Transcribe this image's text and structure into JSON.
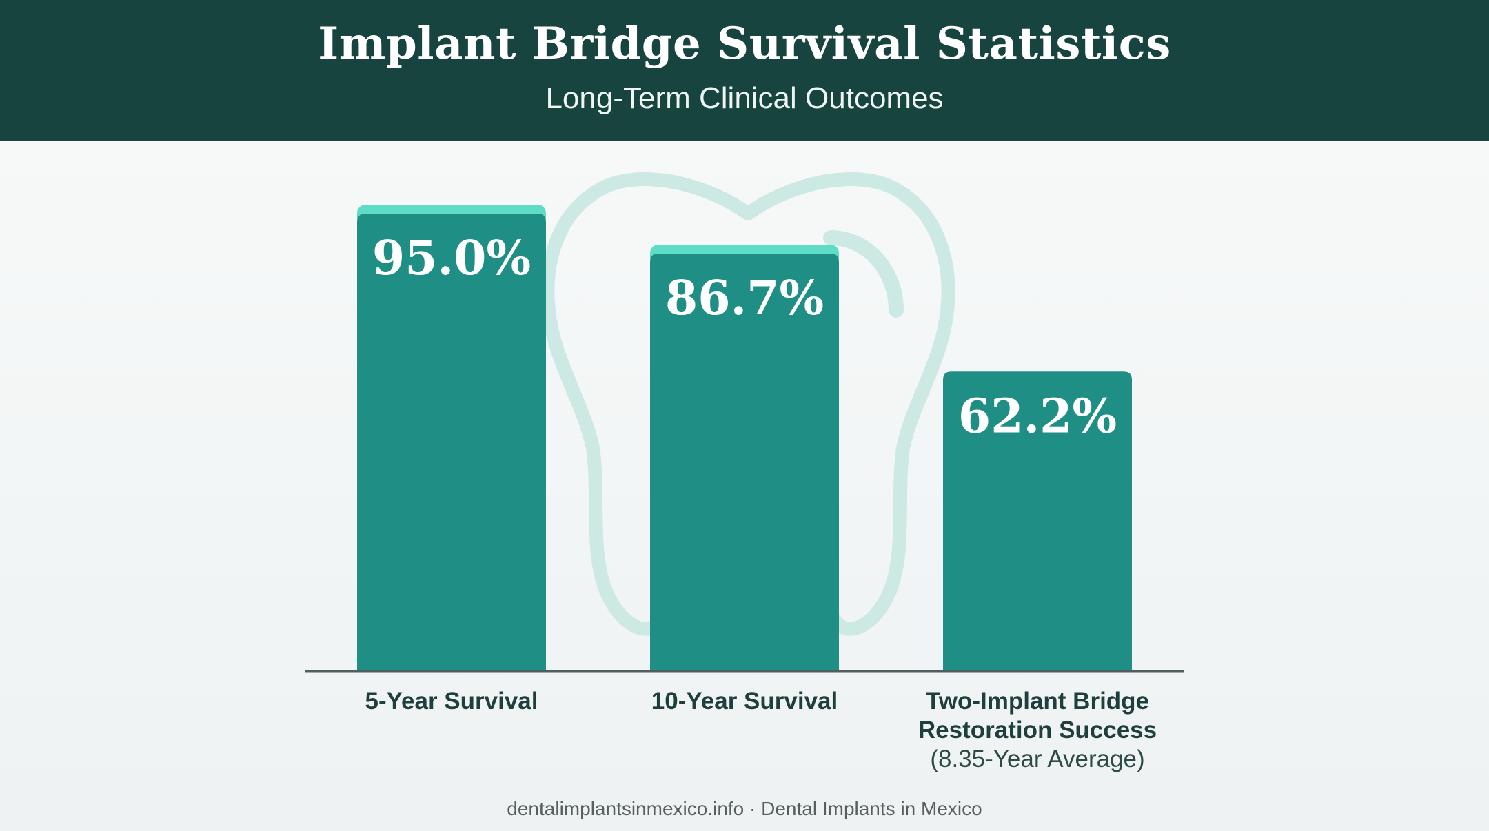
{
  "header": {
    "title": "Implant Bridge Survival Statistics",
    "subtitle": "Long-Term Clinical Outcomes"
  },
  "footer": {
    "text": "dentalimplantsinmexico.info · Dental Implants in Mexico"
  },
  "colors": {
    "header_bg": "#17443f",
    "bar": "#1f8f86",
    "bar_cap": "#5fdcc6",
    "tooth_outline": "#cde9e3",
    "baseline": "#4f5f5d"
  },
  "decoration": {
    "background_icon": "tooth-outline-icon"
  },
  "chart_data": {
    "type": "bar",
    "title": "Implant Bridge Survival Statistics",
    "subtitle": "Long-Term Clinical Outcomes",
    "categories": [
      [
        "5-Year Survival"
      ],
      [
        "10-Year Survival"
      ],
      [
        "Two-Implant Bridge",
        "Restoration Success"
      ]
    ],
    "category_notes": [
      "",
      "",
      "(8.35-Year Average)"
    ],
    "values": [
      95.0,
      86.7,
      62.2
    ],
    "value_labels": [
      "95.0%",
      "86.7%",
      "62.2%"
    ],
    "value_caps": [
      true,
      true,
      false
    ],
    "unit": "%",
    "ylim": [
      0,
      100
    ],
    "grid": false,
    "legend": "none"
  }
}
